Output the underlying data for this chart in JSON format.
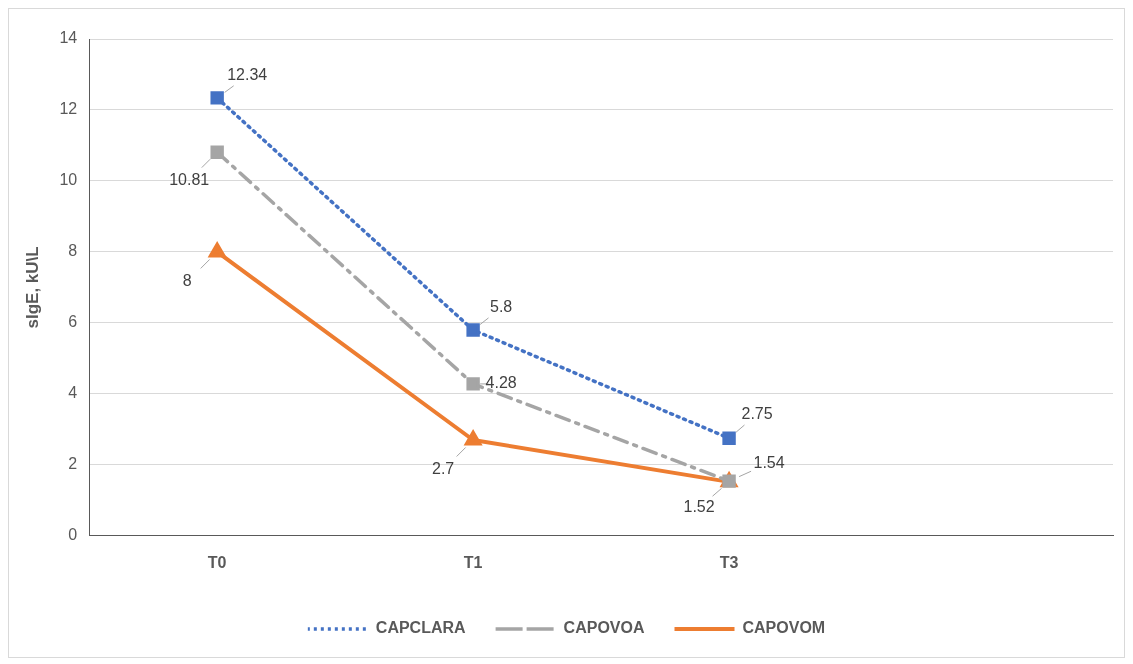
{
  "chart_data": {
    "type": "line",
    "ylabel": "sIgE, kU\\L",
    "categories": [
      "T0",
      "T1",
      "T3",
      null
    ],
    "series": [
      {
        "name": "CAPCLARA",
        "color": "#4472c4",
        "values": [
          12.34,
          5.8,
          2.75,
          null
        ],
        "marker": "square",
        "line_style": "dotted"
      },
      {
        "name": "CAPOVOA",
        "color": "#a5a5a5",
        "values": [
          10.81,
          4.28,
          1.54,
          null
        ],
        "marker": "square",
        "line_style": "dashed"
      },
      {
        "name": "CAPOVOM",
        "color": "#ed7d31",
        "values": [
          8,
          2.7,
          1.52,
          null
        ],
        "marker": "triangle",
        "line_style": "solid"
      }
    ],
    "ylim": [
      0,
      14
    ],
    "yticks": [
      0,
      2,
      4,
      6,
      8,
      10,
      12,
      14
    ],
    "grid": "y",
    "legend": "bottom",
    "data_labels": true
  }
}
